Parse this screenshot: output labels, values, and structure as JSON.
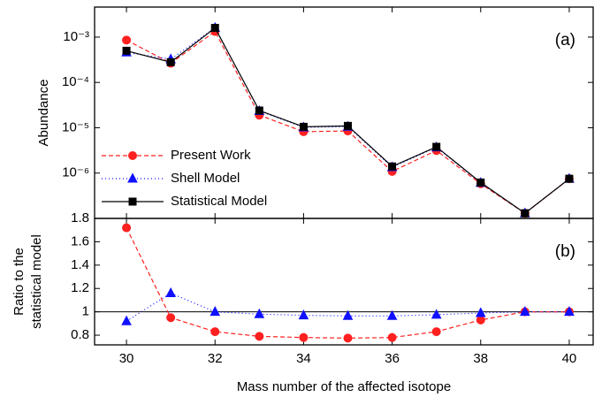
{
  "chart_data": [
    {
      "type": "line",
      "log_y": true,
      "annotation": "(a)",
      "ylabel": "Abundance",
      "x": [
        30,
        31,
        32,
        33,
        34,
        35,
        36,
        37,
        38,
        39,
        40
      ],
      "xlim": [
        29.28,
        40.54
      ],
      "xticks": [
        30,
        32,
        34,
        36,
        38,
        40
      ],
      "x_tick_labels": false,
      "ylim": [
        1e-07,
        0.0046
      ],
      "yticks": [
        {
          "value": 0.001,
          "label": "10⁻³"
        },
        {
          "value": 0.0001,
          "label": "10⁻⁴"
        },
        {
          "value": 1e-05,
          "label": "10⁻⁵"
        },
        {
          "value": 1e-06,
          "label": "10⁻⁶"
        }
      ],
      "legend": "left",
      "series": [
        {
          "name": "Present Work",
          "color": "#ff2020",
          "dash": "5,3",
          "marker": "circle",
          "values": [
            0.00086,
            0.000266,
            0.00133,
            1.9e-05,
            8.2e-06,
            8.5e-06,
            1.09e-06,
            3.15e-06,
            5.8e-07,
            1.3e-07,
            7.5e-07
          ]
        },
        {
          "name": "Shell Model",
          "color": "#1010ff",
          "dash": "1,3",
          "marker": "triangle",
          "values": [
            0.00046,
            0.000325,
            0.0016,
            2.35e-05,
            1.02e-05,
            1.06e-05,
            1.35e-06,
            3.7e-06,
            6.1e-07,
            1.3e-07,
            7.5e-07
          ]
        },
        {
          "name": "Statistical Model",
          "color": "#000000",
          "dash": "none",
          "marker": "square",
          "values": [
            0.0005,
            0.00028,
            0.0016,
            2.4e-05,
            1.05e-05,
            1.1e-05,
            1.4e-06,
            3.8e-06,
            6.2e-07,
            1.3e-07,
            7.5e-07
          ]
        }
      ]
    },
    {
      "type": "line",
      "annotation": "(b)",
      "ylabel": [
        "Ratio to the",
        "statistical model"
      ],
      "xlabel": "Mass number of the affected isotope",
      "x": [
        30,
        31,
        32,
        33,
        34,
        35,
        36,
        37,
        38,
        39,
        40
      ],
      "xlim": [
        29.28,
        40.54
      ],
      "xticks": [
        30,
        32,
        34,
        36,
        38,
        40
      ],
      "ylim": [
        0.717,
        1.8
      ],
      "yticks": [
        0.8,
        1.0,
        1.2,
        1.4,
        1.6,
        1.8
      ],
      "reference_line": 1.0,
      "series": [
        {
          "color": "#ff2020",
          "dash": "5,3",
          "marker": "circle",
          "values": [
            1.72,
            0.95,
            0.83,
            0.79,
            0.78,
            0.775,
            0.78,
            0.83,
            0.93,
            1.0,
            1.0
          ]
        },
        {
          "color": "#1010ff",
          "dash": "1,3",
          "marker": "triangle",
          "values": [
            0.92,
            1.16,
            1.0,
            0.98,
            0.97,
            0.965,
            0.965,
            0.975,
            0.99,
            1.0,
            1.0
          ]
        }
      ]
    }
  ]
}
